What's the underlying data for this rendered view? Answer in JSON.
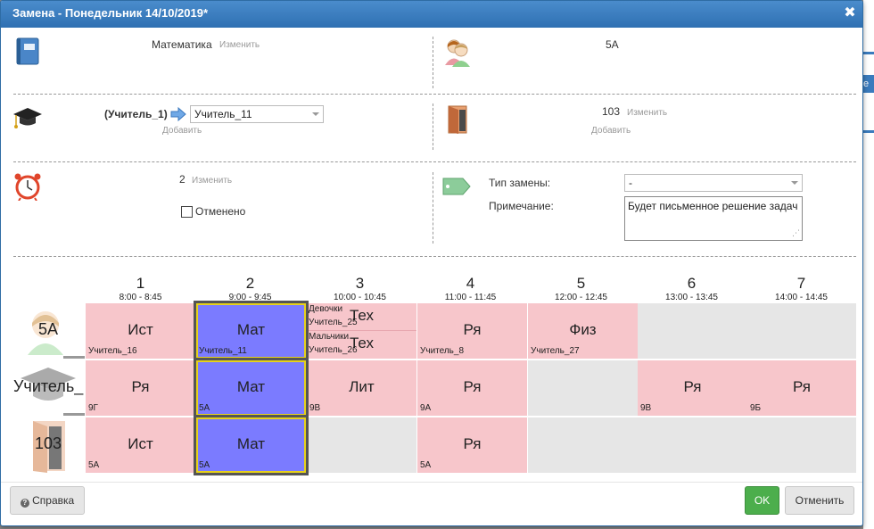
{
  "dialog": {
    "title": "Замена - Понедельник 14/10/2019*"
  },
  "subject": {
    "name": "Математика",
    "change": "Изменить"
  },
  "class_group": {
    "name": "5А"
  },
  "teacher": {
    "old": "(Учитель_1)",
    "new": "Учитель_11",
    "add": "Добавить"
  },
  "room": {
    "number": "103",
    "change": "Изменить",
    "add": "Добавить"
  },
  "lesson": {
    "number": "2",
    "change": "Изменить",
    "cancelled_label": "Отменено",
    "cancelled": false
  },
  "replacement": {
    "type_label": "Тип замены:",
    "type_value": "-",
    "note_label": "Примечание:",
    "note_value": "Будет письменное решение задач"
  },
  "timetable": {
    "periods": [
      {
        "num": "1",
        "time": "8:00 - 8:45"
      },
      {
        "num": "2",
        "time": "9:00 - 9:45"
      },
      {
        "num": "3",
        "time": "10:00 - 10:45"
      },
      {
        "num": "4",
        "time": "11:00 - 11:45"
      },
      {
        "num": "5",
        "time": "12:00 - 12:45"
      },
      {
        "num": "6",
        "time": "13:00 - 13:45"
      },
      {
        "num": "7",
        "time": "14:00 - 14:45"
      }
    ],
    "rows": [
      {
        "label": "5А",
        "icon": "students-icon"
      },
      {
        "label": "Учитель_",
        "icon": "graduation-cap-icon"
      },
      {
        "label": "103",
        "icon": "door-icon"
      }
    ],
    "row1": {
      "c1": {
        "subj": "Ист",
        "sub": "Учитель_16"
      },
      "c2": {
        "subj": "Мат",
        "sub": "Учитель_11"
      },
      "c3": {
        "top_group": "Девочки",
        "top_teacher": "Учитель_25",
        "top_subj": "Тех",
        "bottom_group": "Мальчики",
        "bottom_teacher": "Учитель_26",
        "bottom_subj": "Тех"
      },
      "c4": {
        "subj": "Ря",
        "sub": "Учитель_8"
      },
      "c5": {
        "subj": "Физ",
        "sub": "Учитель_27"
      }
    },
    "row2": {
      "c1": {
        "subj": "Ря",
        "sub": "9Г"
      },
      "c2": {
        "subj": "Мат",
        "sub": "5А"
      },
      "c3": {
        "subj": "Лит",
        "sub": "9В"
      },
      "c4": {
        "subj": "Ря",
        "sub": "9А"
      },
      "c6": {
        "subj": "Ря",
        "sub": "9В"
      },
      "c7": {
        "subj": "Ря",
        "sub": "9Б"
      }
    },
    "row3": {
      "c1": {
        "subj": "Ист",
        "sub": "5А"
      },
      "c2": {
        "subj": "Мат",
        "sub": "5А"
      },
      "c4": {
        "subj": "Ря",
        "sub": "5А"
      }
    }
  },
  "footer": {
    "help": "Справка",
    "ok": "OK",
    "cancel": "Отменить"
  },
  "colors": {
    "titlebar": "#2f70b2",
    "lesson_cell": "#f7c6cb",
    "selected_cell": "#7b7bff",
    "ok_button": "#4cae4c"
  }
}
